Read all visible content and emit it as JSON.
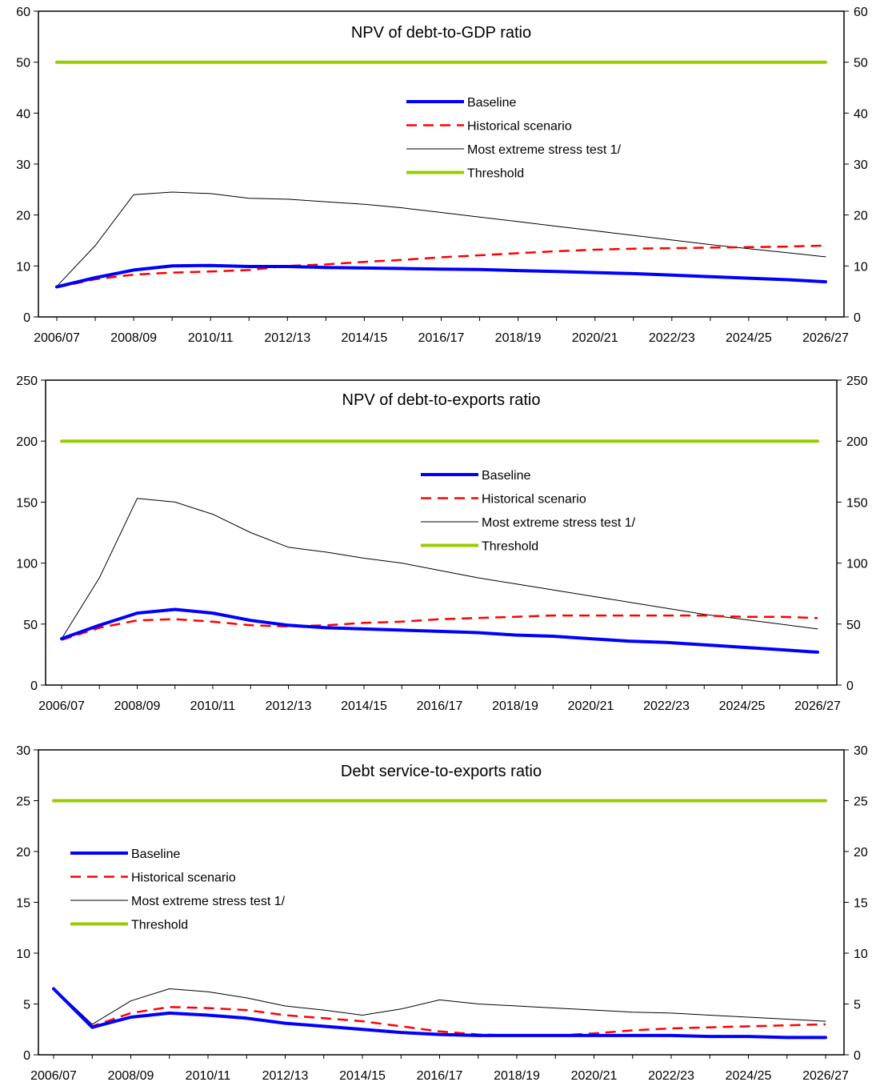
{
  "chart_data": [
    {
      "type": "line",
      "title": "NPV of debt-to-GDP ratio",
      "xlabel": "",
      "ylabel": "",
      "ylim": [
        0,
        60
      ],
      "yticks": [
        "0",
        "10",
        "20",
        "30",
        "40",
        "50",
        "60"
      ],
      "x": [
        "2006/07",
        "2007/08",
        "2008/09",
        "2009/10",
        "2010/11",
        "2011/12",
        "2012/13",
        "2013/14",
        "2014/15",
        "2015/16",
        "2016/17",
        "2017/18",
        "2018/19",
        "2019/20",
        "2020/21",
        "2021/22",
        "2022/23",
        "2023/24",
        "2024/25",
        "2025/26",
        "2026/27"
      ],
      "xtick_labels": [
        "2006/07",
        "",
        "2008/09",
        "",
        "2010/11",
        "",
        "2012/13",
        "",
        "2014/15",
        "",
        "2016/17",
        "",
        "2018/19",
        "",
        "2020/21",
        "",
        "2022/23",
        "",
        "2024/25",
        "",
        "2026/27"
      ],
      "legend_position": "upper-center",
      "series": [
        {
          "name": "Baseline",
          "color": "#0000ff",
          "style": "solid-thick",
          "values": [
            5.9,
            7.7,
            9.2,
            10.0,
            10.1,
            9.9,
            9.9,
            9.7,
            9.6,
            9.5,
            9.4,
            9.3,
            9.1,
            8.9,
            8.7,
            8.5,
            8.2,
            7.9,
            7.6,
            7.3,
            6.9
          ]
        },
        {
          "name": "Historical scenario",
          "color": "#ff0000",
          "style": "dashed",
          "values": [
            5.8,
            7.4,
            8.3,
            8.7,
            8.9,
            9.2,
            10.0,
            10.3,
            10.8,
            11.2,
            11.7,
            12.1,
            12.5,
            12.9,
            13.2,
            13.4,
            13.5,
            13.6,
            13.7,
            13.8,
            14.0
          ]
        },
        {
          "name": "Most extreme stress test 1/",
          "color": "#000000",
          "style": "thin",
          "values": [
            6.0,
            14.0,
            24.0,
            24.5,
            24.2,
            23.3,
            23.1,
            22.6,
            22.1,
            21.4,
            20.5,
            19.6,
            18.7,
            17.8,
            16.9,
            16.0,
            15.1,
            14.2,
            13.4,
            12.6,
            11.8
          ]
        },
        {
          "name": "Threshold",
          "color": "#99cc00",
          "style": "solid-thick",
          "values": [
            50,
            50,
            50,
            50,
            50,
            50,
            50,
            50,
            50,
            50,
            50,
            50,
            50,
            50,
            50,
            50,
            50,
            50,
            50,
            50,
            50
          ]
        }
      ]
    },
    {
      "type": "line",
      "title": "NPV of debt-to-exports ratio",
      "xlabel": "",
      "ylabel": "",
      "ylim": [
        0,
        250
      ],
      "yticks": [
        "0",
        "50",
        "100",
        "150",
        "200",
        "250"
      ],
      "x": [
        "2006/07",
        "2007/08",
        "2008/09",
        "2009/10",
        "2010/11",
        "2011/12",
        "2012/13",
        "2013/14",
        "2014/15",
        "2015/16",
        "2016/17",
        "2017/18",
        "2018/19",
        "2019/20",
        "2020/21",
        "2021/22",
        "2022/23",
        "2023/24",
        "2024/25",
        "2025/26",
        "2026/27"
      ],
      "xtick_labels": [
        "2006/07",
        "",
        "2008/09",
        "",
        "2010/11",
        "",
        "2012/13",
        "",
        "2014/15",
        "",
        "2016/17",
        "",
        "2018/19",
        "",
        "2020/21",
        "",
        "2022/23",
        "",
        "2024/25",
        "",
        "2026/27"
      ],
      "legend_position": "upper-center",
      "series": [
        {
          "name": "Baseline",
          "color": "#0000ff",
          "style": "solid-thick",
          "values": [
            38,
            49,
            59,
            62,
            59,
            53,
            49,
            47,
            46,
            45,
            44,
            43,
            41,
            40,
            38,
            36,
            35,
            33,
            31,
            29,
            27
          ]
        },
        {
          "name": "Historical scenario",
          "color": "#ff0000",
          "style": "dashed",
          "values": [
            37,
            47,
            53,
            54,
            52,
            49,
            48,
            49,
            51,
            52,
            54,
            55,
            56,
            57,
            57,
            57,
            57,
            57,
            56,
            56,
            55
          ]
        },
        {
          "name": "Most extreme stress test 1/",
          "color": "#000000",
          "style": "thin",
          "values": [
            38,
            88,
            153,
            150,
            140,
            125,
            113,
            109,
            104,
            100,
            94,
            88,
            83,
            78,
            73,
            68,
            63,
            58,
            54,
            50,
            46
          ]
        },
        {
          "name": "Threshold",
          "color": "#99cc00",
          "style": "solid-thick",
          "values": [
            200,
            200,
            200,
            200,
            200,
            200,
            200,
            200,
            200,
            200,
            200,
            200,
            200,
            200,
            200,
            200,
            200,
            200,
            200,
            200,
            200
          ]
        }
      ]
    },
    {
      "type": "line",
      "title": "Debt service-to-exports ratio",
      "xlabel": "",
      "ylabel": "",
      "ylim": [
        0,
        30
      ],
      "yticks": [
        "0",
        "5",
        "10",
        "15",
        "20",
        "25",
        "30"
      ],
      "x": [
        "2006/07",
        "2007/08",
        "2008/09",
        "2009/10",
        "2010/11",
        "2011/12",
        "2012/13",
        "2013/14",
        "2014/15",
        "2015/16",
        "2016/17",
        "2017/18",
        "2018/19",
        "2019/20",
        "2020/21",
        "2021/22",
        "2022/23",
        "2023/24",
        "2024/25",
        "2025/26",
        "2026/27"
      ],
      "xtick_labels": [
        "2006/07",
        "",
        "2008/09",
        "",
        "2010/11",
        "",
        "2012/13",
        "",
        "2014/15",
        "",
        "2016/17",
        "",
        "2018/19",
        "",
        "2020/21",
        "",
        "2022/23",
        "",
        "2024/25",
        "",
        "2026/27"
      ],
      "legend_position": "upper-left",
      "series": [
        {
          "name": "Baseline",
          "color": "#0000ff",
          "style": "solid-thick",
          "values": [
            6.5,
            2.7,
            3.7,
            4.1,
            3.9,
            3.6,
            3.1,
            2.8,
            2.5,
            2.2,
            2.0,
            1.9,
            1.9,
            1.9,
            1.9,
            1.9,
            1.9,
            1.8,
            1.8,
            1.7,
            1.7
          ]
        },
        {
          "name": "Historical scenario",
          "color": "#ff0000",
          "style": "dashed",
          "values": [
            6.5,
            2.8,
            4.1,
            4.7,
            4.6,
            4.4,
            3.9,
            3.6,
            3.3,
            2.8,
            2.3,
            2.0,
            1.9,
            1.9,
            2.1,
            2.4,
            2.6,
            2.7,
            2.8,
            2.9,
            3.0
          ]
        },
        {
          "name": "Most extreme stress test 1/",
          "color": "#000000",
          "style": "thin",
          "values": [
            6.6,
            3.0,
            5.3,
            6.5,
            6.2,
            5.6,
            4.8,
            4.4,
            3.9,
            4.5,
            5.4,
            5.0,
            4.8,
            4.6,
            4.4,
            4.2,
            4.1,
            3.9,
            3.7,
            3.5,
            3.3
          ]
        },
        {
          "name": "Threshold",
          "color": "#99cc00",
          "style": "solid-thick",
          "values": [
            25,
            25,
            25,
            25,
            25,
            25,
            25,
            25,
            25,
            25,
            25,
            25,
            25,
            25,
            25,
            25,
            25,
            25,
            25,
            25,
            25
          ]
        }
      ]
    }
  ]
}
